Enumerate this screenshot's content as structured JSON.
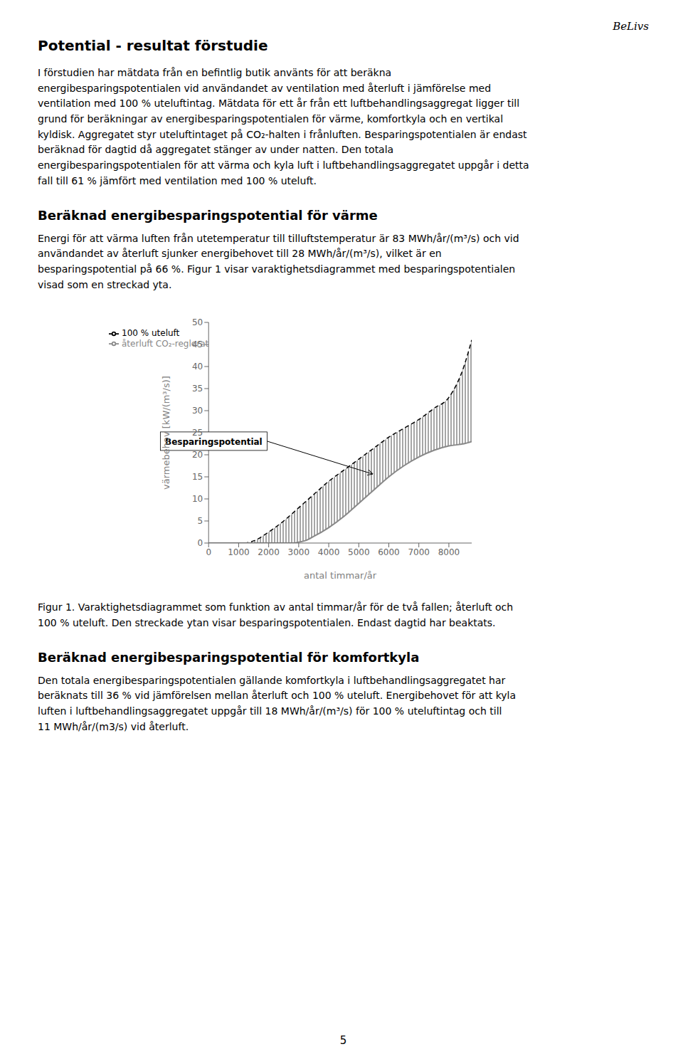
{
  "chart_data": {
    "type": "line",
    "title": "Potential - resultat förstudie",
    "annotations": [
      {
        "text": "BeLivs"
      },
      {
        "text": "I förstudien har mätdata från en befintlig butik använts för att beräkna\nenergibesparingspotentialen vid användandet av ventilation med återluft i jämförelse med\nventilation med 100 % uteluftintag. Mätdata för ett år från ett luftbehandlingsaggregat ligger till\ngrund för beräkningar av energibesparingspotentialen för värme, komfortkyla och en vertikal\nkyldisk. Aggregatet styr uteluftintaget på CO₂-halten i frånluften. Besparingspotentialen är endast\nberäknad för dagtid då aggregatet stänger av under natten. Den totala\nenergibesparingspotentialen för att värma och kyla luft i luftbehandlingsaggregatet uppgår i detta\nfall till 61 % jämfört med ventilation med 100 % uteluft."
      },
      {
        "text": "Beräknad energibesparingspotential för värme"
      },
      {
        "text": "Energi för att värma luften från utetemperatur till tilluftstemperatur är 83 MWh/år/(m³/s) och vid\nanvändandet av återluft sjunker energibehovet till 28 MWh/år/(m³/s), vilket är en\nbesparingspotential på 66 %. Figur 1 visar varaktighetsdiagrammet med besparingspotentialen\nvisad som en streckad yta."
      },
      {
        "text": "Figur 1. Varaktighetsdiagrammet som funktion av antal timmar/år för de två fallen; återluft och\n100 % uteluft. Den streckade ytan visar besparingspotentialen. Endast dagtid har beaktats."
      },
      {
        "text": "Beräknad energibesparingspotential för komfortkyla"
      },
      {
        "text": "Den totala energibesparingspotentialen gällande komfortkyla i luftbehandlingsaggregatet har\nberäknats till 36 % vid jämförelsen mellan återluft och 100 % uteluft. Energibehovet för att kyla\nluften i luftbehandlingsaggregatet uppgår till 18 MWh/år/(m³/s) för 100 % uteluftintag och till\n11 MWh/år/(m3/s) vid återluft."
      },
      {
        "text": "5"
      },
      {
        "text": "Besparingspotential",
        "x": 5500,
        "y": 15.5
      }
    ],
    "xlabel": "antal timmar/år",
    "ylabel": "värmebehov [kW/(m³/s)]",
    "xlim": [
      0,
      8760
    ],
    "ylim": [
      0,
      50
    ],
    "xticks": [
      0,
      1000,
      2000,
      3000,
      4000,
      5000,
      6000,
      7000,
      8000
    ],
    "yticks": [
      0,
      5,
      10,
      15,
      20,
      25,
      30,
      35,
      40,
      45,
      50
    ],
    "legend": "upper left",
    "grid": false,
    "series": [
      {
        "name": "100 % uteluft",
        "color": "#000000",
        "line_style": "dashed",
        "x": [
          0,
          1200,
          1500,
          2000,
          2500,
          3000,
          3500,
          4000,
          4500,
          5000,
          5500,
          6000,
          6500,
          7000,
          7500,
          8000,
          8500,
          8760
        ],
        "values": [
          0,
          0,
          0.5,
          2.5,
          5,
          8,
          11,
          14,
          16.5,
          19,
          21.5,
          24,
          26,
          28,
          30.5,
          33,
          40,
          46
        ]
      },
      {
        "name": "återluft CO₂-reglerat",
        "color": "#888888",
        "line_style": "solid",
        "x": [
          0,
          2800,
          3000,
          3200,
          3500,
          4000,
          4500,
          5000,
          5500,
          6000,
          6500,
          7000,
          7500,
          8000,
          8500,
          8760
        ],
        "values": [
          0,
          0,
          0.2,
          0.5,
          1.5,
          3.5,
          6,
          9,
          12,
          15,
          17.5,
          19.5,
          21,
          22,
          22.5,
          23
        ]
      }
    ]
  }
}
